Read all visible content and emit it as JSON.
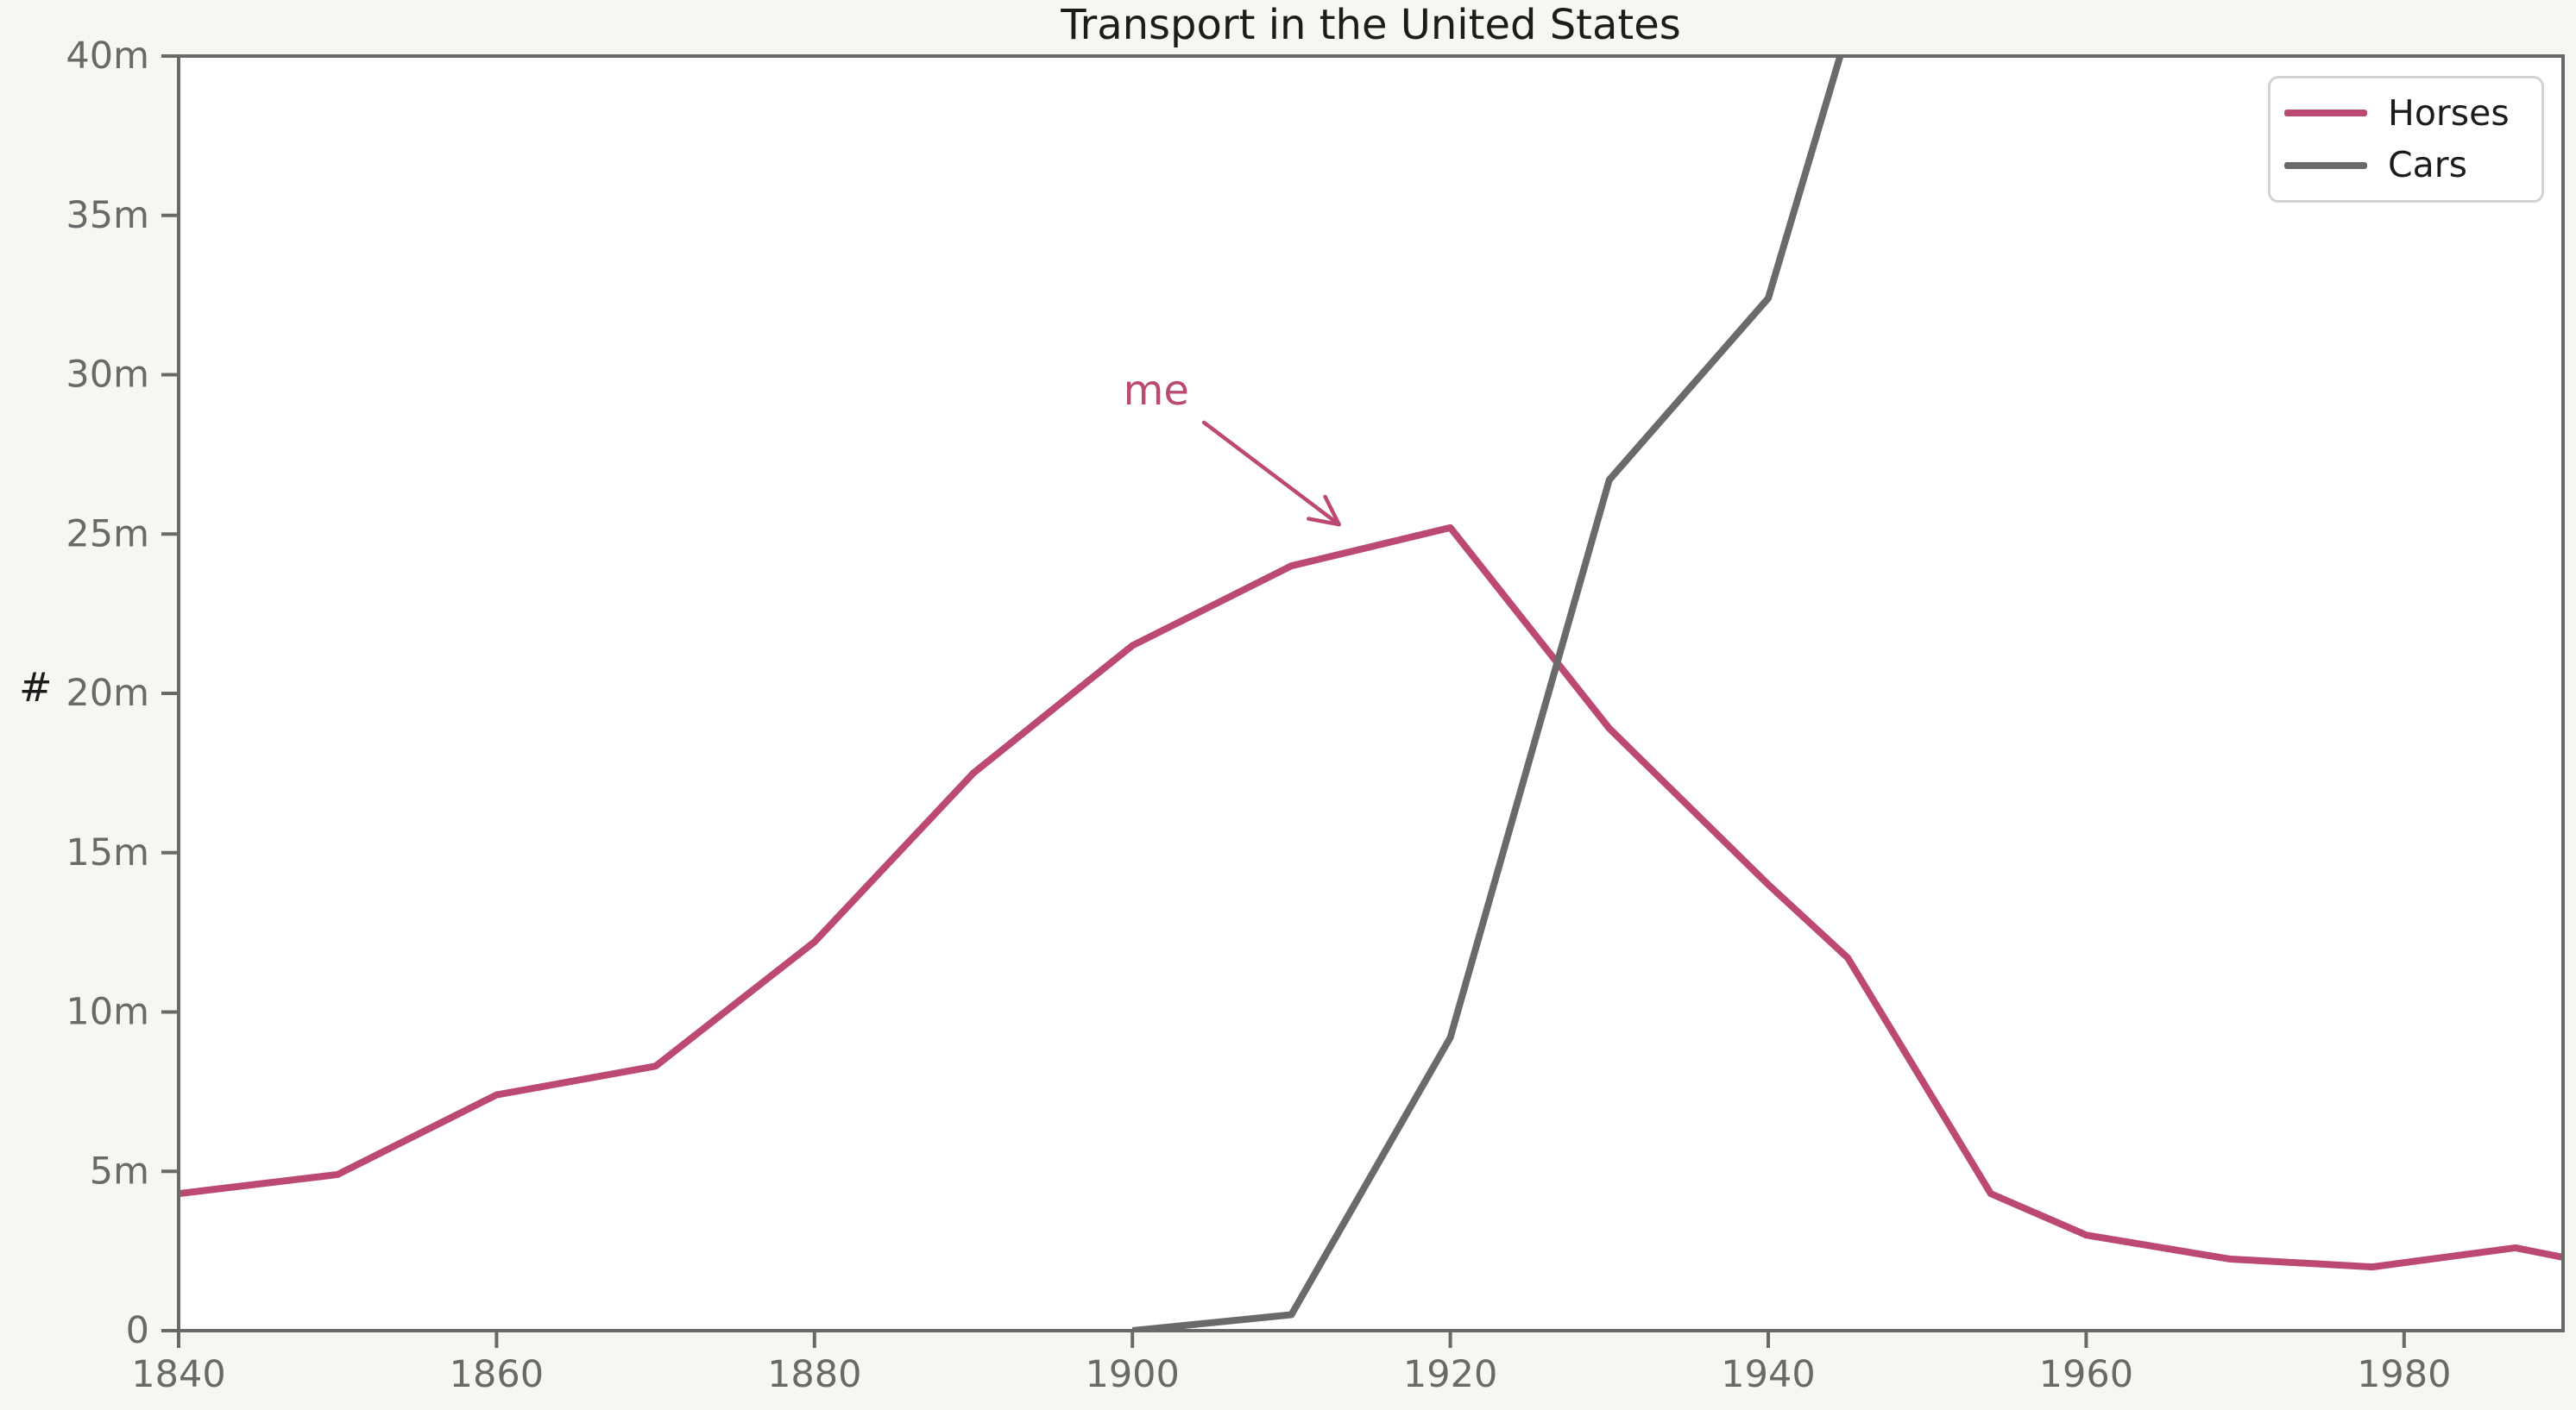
{
  "figure": {
    "background_color": "#f8f6f0",
    "plot_background_color": "#ffffff",
    "axis_color": "#696969",
    "text_color": "#1c1c1c"
  },
  "chart_data": {
    "type": "line",
    "title": "Transport in the United States",
    "xlabel": "",
    "ylabel": "#",
    "units": "millions",
    "xlim": [
      1840,
      1990
    ],
    "ylim": [
      0,
      40
    ],
    "grid": false,
    "legend_position": "top-right",
    "x_ticks": {
      "values": [
        1840,
        1860,
        1880,
        1900,
        1920,
        1940,
        1960,
        1980
      ],
      "labels": [
        "1840",
        "1860",
        "1880",
        "1900",
        "1920",
        "1940",
        "1960",
        "1980"
      ]
    },
    "y_ticks": {
      "values": [
        0,
        5,
        10,
        15,
        20,
        25,
        30,
        35,
        40
      ],
      "labels": [
        "0",
        "5m",
        "10m",
        "15m",
        "20m",
        "25m",
        "30m",
        "35m",
        "40m"
      ]
    },
    "series": [
      {
        "name": "Horses",
        "color": "#bc4973",
        "points": [
          [
            1840,
            4.3
          ],
          [
            1850,
            4.9
          ],
          [
            1860,
            7.4
          ],
          [
            1870,
            8.3
          ],
          [
            1880,
            12.2
          ],
          [
            1890,
            17.5
          ],
          [
            1900,
            21.5
          ],
          [
            1910,
            24.0
          ],
          [
            1920,
            25.2
          ],
          [
            1930,
            18.9
          ],
          [
            1940,
            14.0
          ],
          [
            1945,
            11.7
          ],
          [
            1954,
            4.3
          ],
          [
            1960,
            3.0
          ],
          [
            1969,
            2.25
          ],
          [
            1978,
            2.0
          ],
          [
            1987,
            2.6
          ],
          [
            1990,
            2.3
          ]
        ]
      },
      {
        "name": "Cars",
        "color": "#6a6a6a",
        "points": [
          [
            1900,
            0.0
          ],
          [
            1910,
            0.5
          ],
          [
            1920,
            9.2
          ],
          [
            1930,
            26.7
          ],
          [
            1940,
            32.4
          ],
          [
            1950,
            49.2
          ]
        ]
      }
    ],
    "annotation": {
      "text": "me",
      "color": "#bc4973",
      "text_at": {
        "year": 1901.5,
        "value": 29.5
      },
      "arrow_from": {
        "year": 1904.5,
        "value": 28.5
      },
      "arrow_to": {
        "year": 1913.0,
        "value": 25.3
      }
    }
  },
  "legend": {
    "entries": [
      {
        "label": "Horses",
        "color": "#bc4973"
      },
      {
        "label": "Cars",
        "color": "#6a6a6a"
      }
    ]
  }
}
